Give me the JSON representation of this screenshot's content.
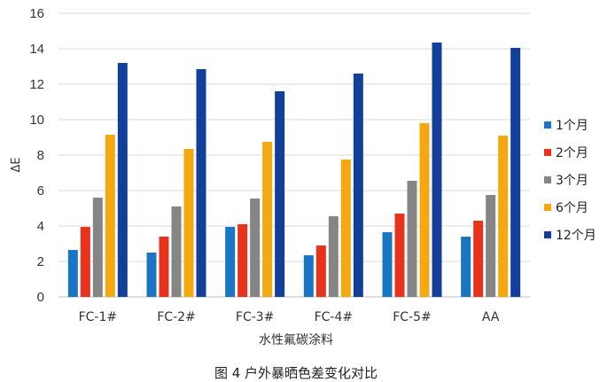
{
  "chart_data": {
    "type": "bar",
    "categories": [
      "FC-1#",
      "FC-2#",
      "FC-3#",
      "FC-4#",
      "FC-5#",
      "AA"
    ],
    "series": [
      {
        "name": "1个月",
        "color": "#1a75c2",
        "values": [
          2.65,
          2.5,
          3.95,
          2.35,
          3.65,
          3.4
        ]
      },
      {
        "name": "2个月",
        "color": "#e8331c",
        "values": [
          3.95,
          3.4,
          4.1,
          2.9,
          4.7,
          4.3
        ]
      },
      {
        "name": "3个月",
        "color": "#858585",
        "values": [
          5.6,
          5.1,
          5.55,
          4.55,
          6.55,
          5.75
        ]
      },
      {
        "name": "6个月",
        "color": "#f3a90f",
        "values": [
          9.15,
          8.35,
          8.75,
          7.75,
          9.8,
          9.1
        ]
      },
      {
        "name": "12个月",
        "color": "#123f9a",
        "values": [
          13.2,
          12.85,
          11.6,
          12.6,
          14.35,
          14.05
        ]
      }
    ],
    "ylim": [
      0,
      16
    ],
    "yticks": [
      "0",
      "2",
      "4",
      "6",
      "8",
      "10",
      "12",
      "14",
      "16"
    ],
    "xlabel": "水性氟碳涂料",
    "ylabel": "ΔE",
    "grid": true,
    "legend": "right"
  },
  "caption": "图 4   户外暴晒色差变化对比"
}
